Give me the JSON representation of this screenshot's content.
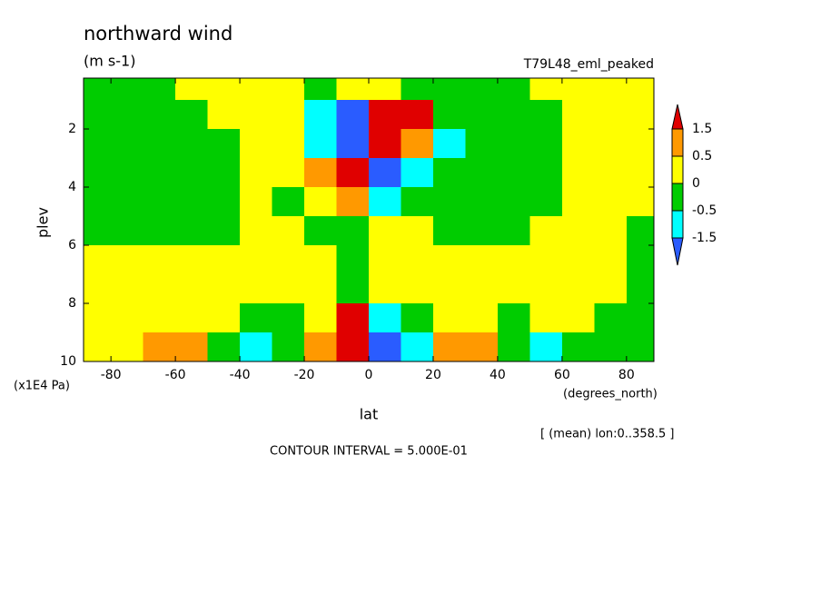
{
  "chart_data": {
    "type": "contour",
    "title": "northward wind",
    "units": "(m s-1)",
    "subtitle": "T79L48_eml_peaked",
    "x_label": "lat",
    "x_units": "(degrees_north)",
    "y_label": "plev",
    "y_units": "(x1E4 Pa)",
    "annotation": "[ (mean) lon:0..358.5 ]",
    "contour_interval_label": "CONTOUR INTERVAL = 5.000E-01",
    "xlim": [
      -88.5,
      88.5
    ],
    "xticks": [
      -80,
      -60,
      -40,
      -20,
      0,
      20,
      40,
      60,
      80
    ],
    "ylim": [
      10,
      0.25
    ],
    "yticks": [
      2,
      4,
      6,
      8,
      10
    ],
    "x": [
      -85,
      -75,
      -65,
      -55,
      -45,
      -35,
      -25,
      -15,
      -5,
      5,
      15,
      25,
      35,
      45,
      55,
      65,
      75,
      85
    ],
    "y": [
      0.5,
      1.5,
      2.5,
      3.5,
      4.5,
      5.5,
      6.5,
      7.5,
      8.5,
      9.5
    ],
    "z": [
      [
        -0.2,
        -0.2,
        -0.2,
        0.2,
        0.2,
        0.2,
        0.2,
        -0.2,
        0.2,
        0.2,
        -0.2,
        -0.2,
        -0.2,
        -0.2,
        0.2,
        0.2,
        0.2,
        0.2
      ],
      [
        -0.2,
        -0.2,
        -0.2,
        -0.2,
        0.2,
        0.2,
        0.3,
        -1.5,
        -2,
        2,
        1.6,
        -0.2,
        -0.2,
        -0.2,
        -0.2,
        0.2,
        0.2,
        0.2
      ],
      [
        -0.2,
        -0.2,
        -0.2,
        -0.2,
        -0.2,
        0.2,
        0.3,
        -1,
        -2,
        2,
        1,
        -0.6,
        -0.2,
        -0.2,
        -0.2,
        0.2,
        0.2,
        0.2
      ],
      [
        -0.2,
        -0.2,
        -0.2,
        -0.2,
        -0.2,
        0.2,
        0.2,
        0.8,
        1.8,
        -1.8,
        -0.7,
        -0.2,
        -0.2,
        -0.2,
        -0.2,
        0.2,
        0.2,
        0.2
      ],
      [
        -0.2,
        -0.2,
        -0.2,
        -0.2,
        -0.2,
        0.2,
        -0.2,
        0.3,
        0.6,
        -0.8,
        -0.2,
        -0.2,
        -0.2,
        -0.2,
        -0.2,
        0.2,
        0.2,
        0.2
      ],
      [
        -0.2,
        -0.2,
        -0.2,
        -0.2,
        -0.2,
        0.2,
        0.2,
        -0.2,
        -0.2,
        0.2,
        0.2,
        -0.2,
        -0.2,
        -0.2,
        0.2,
        0.2,
        0.2,
        -0.2
      ],
      [
        0.2,
        0.2,
        0.2,
        0.2,
        0.2,
        0.2,
        0.2,
        0.2,
        -0.2,
        0.2,
        0.2,
        0.2,
        0.2,
        0.2,
        0.2,
        0.2,
        0.2,
        -0.2
      ],
      [
        0.2,
        0.2,
        0.2,
        0.2,
        0.2,
        0.2,
        0.2,
        0.2,
        -0.2,
        0.2,
        0.2,
        0.2,
        0.2,
        0.2,
        0.2,
        0.2,
        0.2,
        -0.2
      ],
      [
        0.2,
        0.2,
        0.2,
        0.2,
        0.2,
        -0.2,
        -0.2,
        0.3,
        1.5,
        -1.5,
        -0.3,
        0.3,
        0.2,
        -0.2,
        0.2,
        0.2,
        -0.2,
        -0.2
      ],
      [
        0.2,
        0.2,
        0.6,
        0.6,
        -0.2,
        -1,
        -0.2,
        1,
        2,
        -2,
        -1,
        0.8,
        0.6,
        -0.2,
        -0.6,
        -0.2,
        -0.2,
        -0.2
      ]
    ],
    "levels": [
      -1.5,
      -0.5,
      0,
      0.5,
      1.5
    ],
    "colors": [
      "#2a5cff",
      "#00ffff",
      "#00cc00",
      "#ffff00",
      "#ff9900",
      "#e00000"
    ]
  }
}
